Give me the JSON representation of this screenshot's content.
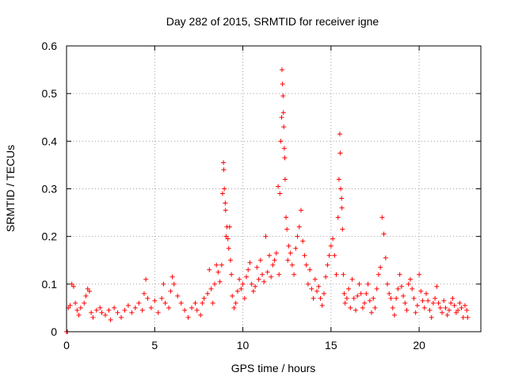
{
  "chart_data": {
    "type": "scatter",
    "title": "Day 282 of 2015, SRMTID for receiver igne",
    "xlabel": "GPS time / hours",
    "ylabel": "SRMTID / TECUs",
    "xlim": [
      0,
      23.5
    ],
    "ylim": [
      0,
      0.6
    ],
    "xticks": [
      0,
      5,
      10,
      15,
      20
    ],
    "yticks": [
      0,
      0.1,
      0.2,
      0.3,
      0.4,
      0.5,
      0.6
    ],
    "xtick_labels": [
      "0",
      "5",
      "10",
      "15",
      "20"
    ],
    "ytick_labels": [
      "0",
      "0.1",
      "0.2",
      "0.3",
      "0.4",
      "0.5",
      "0.6"
    ],
    "grid": true,
    "marker": "plus",
    "color": "#ff0000",
    "series": [
      {
        "name": "SRMTID",
        "points": [
          [
            0.0,
            0.0
          ],
          [
            0.05,
            0.0
          ],
          [
            0.1,
            0.05
          ],
          [
            0.2,
            0.055
          ],
          [
            0.3,
            0.1
          ],
          [
            0.4,
            0.095
          ],
          [
            0.5,
            0.06
          ],
          [
            0.6,
            0.045
          ],
          [
            0.7,
            0.035
          ],
          [
            0.8,
            0.05
          ],
          [
            1.0,
            0.06
          ],
          [
            1.1,
            0.075
          ],
          [
            1.2,
            0.09
          ],
          [
            1.3,
            0.085
          ],
          [
            1.4,
            0.04
          ],
          [
            1.5,
            0.03
          ],
          [
            1.7,
            0.045
          ],
          [
            1.9,
            0.05
          ],
          [
            2.0,
            0.04
          ],
          [
            2.2,
            0.035
          ],
          [
            2.4,
            0.045
          ],
          [
            2.5,
            0.025
          ],
          [
            2.7,
            0.05
          ],
          [
            2.9,
            0.04
          ],
          [
            3.1,
            0.03
          ],
          [
            3.3,
            0.045
          ],
          [
            3.5,
            0.055
          ],
          [
            3.7,
            0.04
          ],
          [
            3.9,
            0.05
          ],
          [
            4.1,
            0.06
          ],
          [
            4.3,
            0.045
          ],
          [
            4.4,
            0.08
          ],
          [
            4.5,
            0.11
          ],
          [
            4.6,
            0.07
          ],
          [
            4.8,
            0.05
          ],
          [
            5.0,
            0.065
          ],
          [
            5.2,
            0.04
          ],
          [
            5.4,
            0.07
          ],
          [
            5.5,
            0.1
          ],
          [
            5.6,
            0.06
          ],
          [
            5.8,
            0.05
          ],
          [
            5.9,
            0.085
          ],
          [
            6.0,
            0.115
          ],
          [
            6.1,
            0.1
          ],
          [
            6.3,
            0.075
          ],
          [
            6.5,
            0.06
          ],
          [
            6.7,
            0.045
          ],
          [
            6.9,
            0.03
          ],
          [
            7.1,
            0.05
          ],
          [
            7.3,
            0.06
          ],
          [
            7.4,
            0.045
          ],
          [
            7.6,
            0.035
          ],
          [
            7.7,
            0.06
          ],
          [
            7.8,
            0.07
          ],
          [
            8.0,
            0.08
          ],
          [
            8.1,
            0.13
          ],
          [
            8.2,
            0.09
          ],
          [
            8.3,
            0.06
          ],
          [
            8.4,
            0.1
          ],
          [
            8.5,
            0.14
          ],
          [
            8.6,
            0.125
          ],
          [
            8.7,
            0.105
          ],
          [
            8.8,
            0.14
          ],
          [
            8.85,
            0.29
          ],
          [
            8.9,
            0.355
          ],
          [
            8.92,
            0.34
          ],
          [
            8.95,
            0.3
          ],
          [
            9.0,
            0.27
          ],
          [
            9.02,
            0.255
          ],
          [
            9.05,
            0.2
          ],
          [
            9.1,
            0.22
          ],
          [
            9.15,
            0.195
          ],
          [
            9.2,
            0.175
          ],
          [
            9.25,
            0.22
          ],
          [
            9.3,
            0.15
          ],
          [
            9.35,
            0.12
          ],
          [
            9.4,
            0.075
          ],
          [
            9.5,
            0.05
          ],
          [
            9.6,
            0.06
          ],
          [
            9.7,
            0.085
          ],
          [
            9.8,
            0.11
          ],
          [
            9.9,
            0.09
          ],
          [
            10.0,
            0.1
          ],
          [
            10.1,
            0.07
          ],
          [
            10.2,
            0.115
          ],
          [
            10.3,
            0.13
          ],
          [
            10.4,
            0.145
          ],
          [
            10.5,
            0.1
          ],
          [
            10.6,
            0.085
          ],
          [
            10.7,
            0.095
          ],
          [
            10.8,
            0.135
          ],
          [
            10.9,
            0.11
          ],
          [
            11.0,
            0.15
          ],
          [
            11.1,
            0.12
          ],
          [
            11.2,
            0.105
          ],
          [
            11.3,
            0.2
          ],
          [
            11.4,
            0.125
          ],
          [
            11.5,
            0.16
          ],
          [
            11.6,
            0.115
          ],
          [
            11.7,
            0.14
          ],
          [
            11.8,
            0.15
          ],
          [
            11.9,
            0.165
          ],
          [
            12.0,
            0.305
          ],
          [
            12.05,
            0.12
          ],
          [
            12.1,
            0.29
          ],
          [
            12.15,
            0.4
          ],
          [
            12.2,
            0.45
          ],
          [
            12.22,
            0.55
          ],
          [
            12.25,
            0.52
          ],
          [
            12.28,
            0.495
          ],
          [
            12.3,
            0.46
          ],
          [
            12.32,
            0.43
          ],
          [
            12.35,
            0.385
          ],
          [
            12.38,
            0.365
          ],
          [
            12.4,
            0.32
          ],
          [
            12.45,
            0.24
          ],
          [
            12.5,
            0.215
          ],
          [
            12.55,
            0.15
          ],
          [
            12.6,
            0.18
          ],
          [
            12.7,
            0.165
          ],
          [
            12.8,
            0.14
          ],
          [
            12.9,
            0.12
          ],
          [
            13.0,
            0.175
          ],
          [
            13.1,
            0.2
          ],
          [
            13.2,
            0.22
          ],
          [
            13.3,
            0.255
          ],
          [
            13.4,
            0.19
          ],
          [
            13.5,
            0.16
          ],
          [
            13.6,
            0.14
          ],
          [
            13.7,
            0.1
          ],
          [
            13.8,
            0.13
          ],
          [
            13.9,
            0.09
          ],
          [
            14.0,
            0.07
          ],
          [
            14.1,
            0.11
          ],
          [
            14.2,
            0.085
          ],
          [
            14.3,
            0.095
          ],
          [
            14.4,
            0.07
          ],
          [
            14.5,
            0.055
          ],
          [
            14.6,
            0.08
          ],
          [
            14.7,
            0.115
          ],
          [
            14.8,
            0.14
          ],
          [
            14.9,
            0.16
          ],
          [
            15.0,
            0.18
          ],
          [
            15.1,
            0.195
          ],
          [
            15.2,
            0.16
          ],
          [
            15.3,
            0.12
          ],
          [
            15.4,
            0.24
          ],
          [
            15.45,
            0.32
          ],
          [
            15.5,
            0.415
          ],
          [
            15.52,
            0.375
          ],
          [
            15.55,
            0.3
          ],
          [
            15.6,
            0.28
          ],
          [
            15.62,
            0.26
          ],
          [
            15.65,
            0.215
          ],
          [
            15.7,
            0.12
          ],
          [
            15.75,
            0.08
          ],
          [
            15.8,
            0.06
          ],
          [
            15.9,
            0.07
          ],
          [
            16.0,
            0.09
          ],
          [
            16.1,
            0.05
          ],
          [
            16.2,
            0.11
          ],
          [
            16.3,
            0.07
          ],
          [
            16.4,
            0.045
          ],
          [
            16.5,
            0.075
          ],
          [
            16.6,
            0.1
          ],
          [
            16.7,
            0.08
          ],
          [
            16.8,
            0.05
          ],
          [
            16.9,
            0.06
          ],
          [
            17.0,
            0.08
          ],
          [
            17.1,
            0.1
          ],
          [
            17.2,
            0.065
          ],
          [
            17.3,
            0.04
          ],
          [
            17.4,
            0.07
          ],
          [
            17.5,
            0.05
          ],
          [
            17.6,
            0.09
          ],
          [
            17.7,
            0.12
          ],
          [
            17.8,
            0.135
          ],
          [
            17.9,
            0.24
          ],
          [
            18.0,
            0.205
          ],
          [
            18.1,
            0.155
          ],
          [
            18.2,
            0.1
          ],
          [
            18.3,
            0.08
          ],
          [
            18.4,
            0.07
          ],
          [
            18.5,
            0.05
          ],
          [
            18.6,
            0.035
          ],
          [
            18.7,
            0.07
          ],
          [
            18.8,
            0.09
          ],
          [
            18.9,
            0.12
          ],
          [
            19.0,
            0.095
          ],
          [
            19.1,
            0.075
          ],
          [
            19.2,
            0.06
          ],
          [
            19.3,
            0.045
          ],
          [
            19.4,
            0.1
          ],
          [
            19.5,
            0.11
          ],
          [
            19.6,
            0.09
          ],
          [
            19.7,
            0.07
          ],
          [
            19.8,
            0.04
          ],
          [
            19.9,
            0.055
          ],
          [
            20.0,
            0.12
          ],
          [
            20.1,
            0.085
          ],
          [
            20.2,
            0.065
          ],
          [
            20.3,
            0.05
          ],
          [
            20.4,
            0.08
          ],
          [
            20.5,
            0.065
          ],
          [
            20.6,
            0.045
          ],
          [
            20.7,
            0.03
          ],
          [
            20.8,
            0.06
          ],
          [
            20.9,
            0.07
          ],
          [
            21.0,
            0.095
          ],
          [
            21.1,
            0.06
          ],
          [
            21.2,
            0.05
          ],
          [
            21.3,
            0.04
          ],
          [
            21.4,
            0.065
          ],
          [
            21.5,
            0.05
          ],
          [
            21.6,
            0.035
          ],
          [
            21.7,
            0.045
          ],
          [
            21.8,
            0.06
          ],
          [
            21.9,
            0.07
          ],
          [
            22.0,
            0.055
          ],
          [
            22.1,
            0.04
          ],
          [
            22.2,
            0.045
          ],
          [
            22.3,
            0.06
          ],
          [
            22.4,
            0.05
          ],
          [
            22.5,
            0.03
          ],
          [
            22.6,
            0.055
          ],
          [
            22.7,
            0.045
          ],
          [
            22.75,
            0.03
          ]
        ]
      }
    ]
  }
}
